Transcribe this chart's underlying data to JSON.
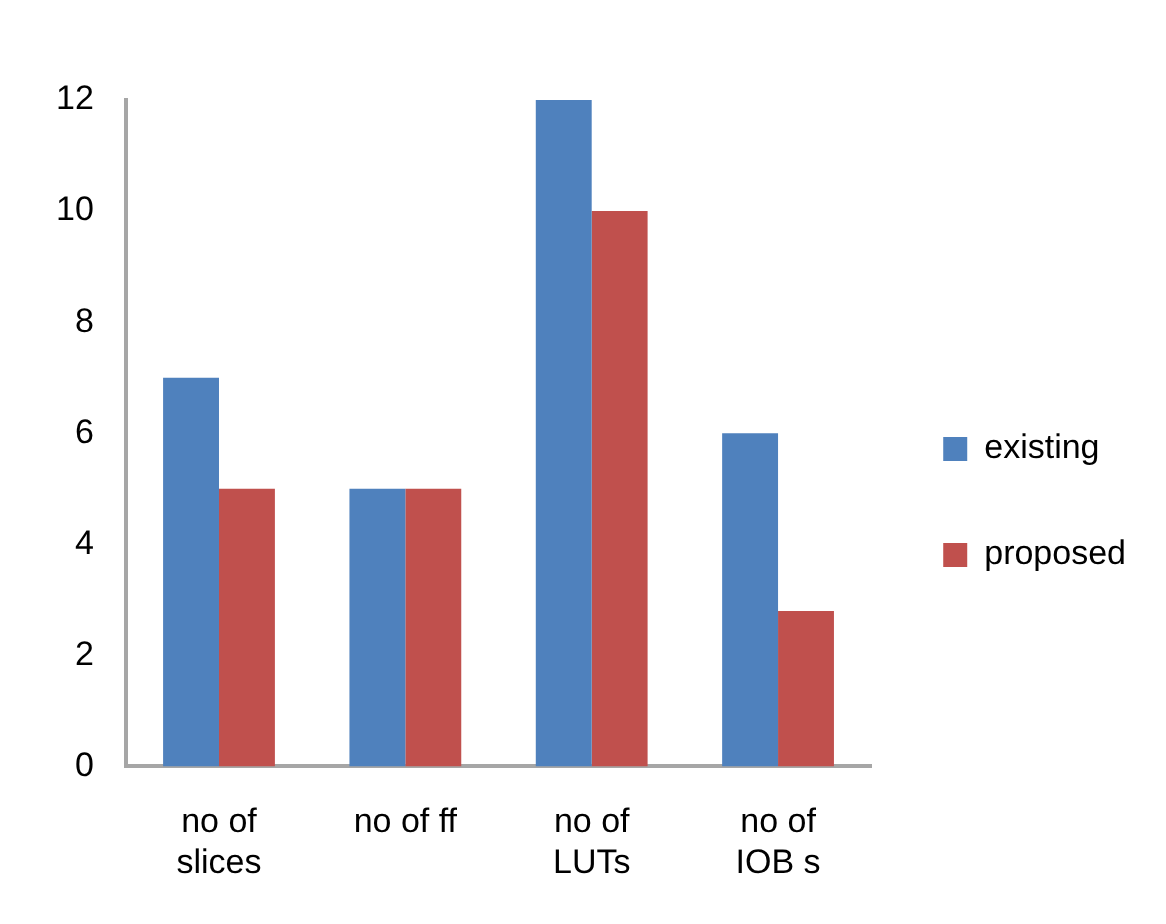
{
  "chart_data": {
    "type": "bar",
    "categories": [
      "no of slices",
      "no of ff",
      "no of LUTs",
      "no of IOB s"
    ],
    "series": [
      {
        "name": "existing",
        "color": "#4f81bd",
        "values": [
          7,
          5,
          12,
          6
        ]
      },
      {
        "name": "proposed",
        "color": "#c0504d",
        "values": [
          5,
          5,
          10,
          2.8
        ]
      }
    ],
    "ylim": [
      0,
      12
    ],
    "yticks": [
      0,
      2,
      4,
      6,
      8,
      10,
      12
    ],
    "grid": false,
    "legend": "right"
  }
}
